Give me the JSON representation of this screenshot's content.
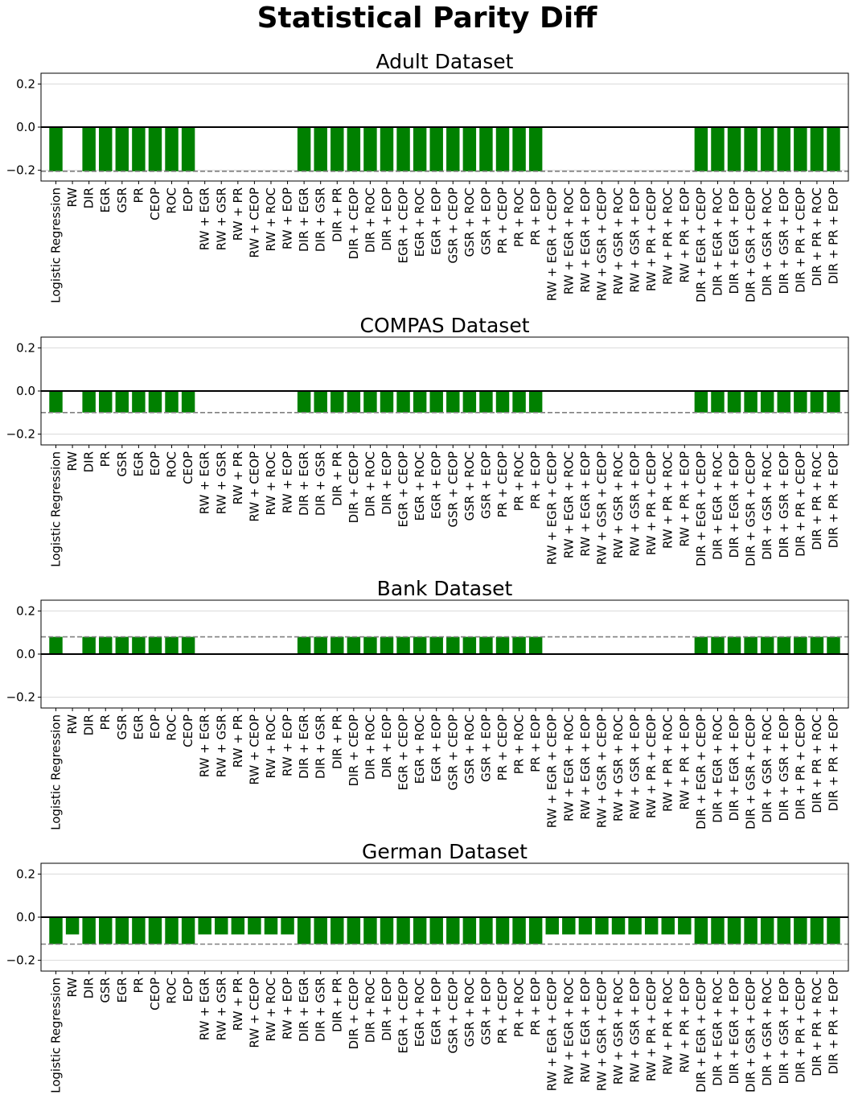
{
  "figure": {
    "title": "Statistical Parity Diff"
  },
  "colors": {
    "bar": "#008000",
    "zero_line": "#000000",
    "ref_line": "#808080",
    "grid": "#d9d9d9"
  },
  "chart_data": [
    {
      "type": "bar",
      "title": "Adult Dataset",
      "ylim": [
        -0.25,
        0.25
      ],
      "yticks": [
        -0.2,
        0.0,
        0.2
      ],
      "ytick_labels": [
        "−0.2",
        "0.0",
        "0.2"
      ],
      "grid": "horizontal",
      "reference_line": -0.205,
      "categories": [
        "Logistic Regression",
        "RW",
        "DIR",
        "EGR",
        "GSR",
        "PR",
        "CEOP",
        "ROC",
        "EOP",
        "RW + EGR",
        "RW + GSR",
        "RW + PR",
        "RW + CEOP",
        "RW + ROC",
        "RW + EOP",
        "DIR + EGR",
        "DIR + GSR",
        "DIR + PR",
        "DIR + CEOP",
        "DIR + ROC",
        "DIR + EOP",
        "EGR + CEOP",
        "EGR + ROC",
        "EGR + EOP",
        "GSR + CEOP",
        "GSR + ROC",
        "GSR + EOP",
        "PR + CEOP",
        "PR + ROC",
        "PR + EOP",
        "RW + EGR + CEOP",
        "RW + EGR + ROC",
        "RW + EGR + EOP",
        "RW + GSR + CEOP",
        "RW + GSR + ROC",
        "RW + GSR + EOP",
        "RW + PR + CEOP",
        "RW + PR + ROC",
        "RW + PR + EOP",
        "DIR + EGR + CEOP",
        "DIR + EGR + ROC",
        "DIR + EGR + EOP",
        "DIR + GSR + CEOP",
        "DIR + GSR + ROC",
        "DIR + GSR + EOP",
        "DIR + PR + CEOP",
        "DIR + PR + ROC",
        "DIR + PR + EOP"
      ],
      "values": [
        -0.205,
        0,
        -0.205,
        -0.205,
        -0.205,
        -0.205,
        -0.205,
        -0.205,
        -0.205,
        0,
        0,
        0,
        0,
        0,
        0,
        -0.205,
        -0.205,
        -0.205,
        -0.205,
        -0.205,
        -0.205,
        -0.205,
        -0.205,
        -0.205,
        -0.205,
        -0.205,
        -0.205,
        -0.205,
        -0.205,
        -0.205,
        0,
        0,
        0,
        0,
        0,
        0,
        0,
        0,
        0,
        -0.205,
        -0.205,
        -0.205,
        -0.205,
        -0.205,
        -0.205,
        -0.205,
        -0.205,
        -0.205
      ]
    },
    {
      "type": "bar",
      "title": "COMPAS Dataset",
      "ylim": [
        -0.25,
        0.25
      ],
      "yticks": [
        -0.2,
        0.0,
        0.2
      ],
      "ytick_labels": [
        "−0.2",
        "0.0",
        "0.2"
      ],
      "grid": "horizontal",
      "reference_line": -0.1,
      "categories": [
        "Logistic Regression",
        "RW",
        "DIR",
        "PR",
        "GSR",
        "EGR",
        "EOP",
        "ROC",
        "CEOP",
        "RW + EGR",
        "RW + GSR",
        "RW + PR",
        "RW + CEOP",
        "RW + ROC",
        "RW + EOP",
        "DIR + EGR",
        "DIR + GSR",
        "DIR + PR",
        "DIR + CEOP",
        "DIR + ROC",
        "DIR + EOP",
        "EGR + CEOP",
        "EGR + ROC",
        "EGR + EOP",
        "GSR + CEOP",
        "GSR + ROC",
        "GSR + EOP",
        "PR + CEOP",
        "PR + ROC",
        "PR + EOP",
        "RW + EGR + CEOP",
        "RW + EGR + ROC",
        "RW + EGR + EOP",
        "RW + GSR + CEOP",
        "RW + GSR + ROC",
        "RW + GSR + EOP",
        "RW + PR + CEOP",
        "RW + PR + ROC",
        "RW + PR + EOP",
        "DIR + EGR + CEOP",
        "DIR + EGR + ROC",
        "DIR + EGR + EOP",
        "DIR + GSR + CEOP",
        "DIR + GSR + ROC",
        "DIR + GSR + EOP",
        "DIR + PR + CEOP",
        "DIR + PR + ROC",
        "DIR + PR + EOP"
      ],
      "values": [
        -0.1,
        0,
        -0.1,
        -0.1,
        -0.1,
        -0.1,
        -0.1,
        -0.1,
        -0.1,
        0,
        0,
        0,
        0,
        0,
        0,
        -0.1,
        -0.1,
        -0.1,
        -0.1,
        -0.1,
        -0.1,
        -0.1,
        -0.1,
        -0.1,
        -0.1,
        -0.1,
        -0.1,
        -0.1,
        -0.1,
        -0.1,
        0,
        0,
        0,
        0,
        0,
        0,
        0,
        0,
        0,
        -0.1,
        -0.1,
        -0.1,
        -0.1,
        -0.1,
        -0.1,
        -0.1,
        -0.1,
        -0.1
      ]
    },
    {
      "type": "bar",
      "title": "Bank Dataset",
      "ylim": [
        -0.25,
        0.25
      ],
      "yticks": [
        -0.2,
        0.0,
        0.2
      ],
      "ytick_labels": [
        "−0.2",
        "0.0",
        "0.2"
      ],
      "grid": "horizontal",
      "reference_line": 0.08,
      "categories": [
        "Logistic Regression",
        "RW",
        "DIR",
        "PR",
        "GSR",
        "EGR",
        "EOP",
        "ROC",
        "CEOP",
        "RW + EGR",
        "RW + GSR",
        "RW + PR",
        "RW + CEOP",
        "RW + ROC",
        "RW + EOP",
        "DIR + EGR",
        "DIR + GSR",
        "DIR + PR",
        "DIR + CEOP",
        "DIR + ROC",
        "DIR + EOP",
        "EGR + CEOP",
        "EGR + ROC",
        "EGR + EOP",
        "GSR + CEOP",
        "GSR + ROC",
        "GSR + EOP",
        "PR + CEOP",
        "PR + ROC",
        "PR + EOP",
        "RW + EGR + CEOP",
        "RW + EGR + ROC",
        "RW + EGR + EOP",
        "RW + GSR + CEOP",
        "RW + GSR + ROC",
        "RW + GSR + EOP",
        "RW + PR + CEOP",
        "RW + PR + ROC",
        "RW + PR + EOP",
        "DIR + EGR + CEOP",
        "DIR + EGR + ROC",
        "DIR + EGR + EOP",
        "DIR + GSR + CEOP",
        "DIR + GSR + ROC",
        "DIR + GSR + EOP",
        "DIR + PR + CEOP",
        "DIR + PR + ROC",
        "DIR + PR + EOP"
      ],
      "values": [
        0.08,
        0,
        0.08,
        0.08,
        0.08,
        0.08,
        0.08,
        0.08,
        0.08,
        0,
        0,
        0,
        0,
        0,
        0,
        0.08,
        0.08,
        0.08,
        0.08,
        0.08,
        0.08,
        0.08,
        0.08,
        0.08,
        0.08,
        0.08,
        0.08,
        0.08,
        0.08,
        0.08,
        0,
        0,
        0,
        0,
        0,
        0,
        0,
        0,
        0,
        0.08,
        0.08,
        0.08,
        0.08,
        0.08,
        0.08,
        0.08,
        0.08,
        0.08
      ]
    },
    {
      "type": "bar",
      "title": "German Dataset",
      "ylim": [
        -0.25,
        0.25
      ],
      "yticks": [
        -0.2,
        0.0,
        0.2
      ],
      "ytick_labels": [
        "−0.2",
        "0.0",
        "0.2"
      ],
      "grid": "horizontal",
      "reference_line": -0.125,
      "categories": [
        "Logistic Regression",
        "RW",
        "DIR",
        "GSR",
        "EGR",
        "PR",
        "CEOP",
        "ROC",
        "EOP",
        "RW + EGR",
        "RW + GSR",
        "RW + PR",
        "RW + CEOP",
        "RW + ROC",
        "RW + EOP",
        "DIR + EGR",
        "DIR + GSR",
        "DIR + PR",
        "DIR + CEOP",
        "DIR + ROC",
        "DIR + EOP",
        "EGR + CEOP",
        "EGR + ROC",
        "EGR + EOP",
        "GSR + CEOP",
        "GSR + ROC",
        "GSR + EOP",
        "PR + CEOP",
        "PR + ROC",
        "PR + EOP",
        "RW + EGR + CEOP",
        "RW + EGR + ROC",
        "RW + EGR + EOP",
        "RW + GSR + CEOP",
        "RW + GSR + ROC",
        "RW + GSR + EOP",
        "RW + PR + CEOP",
        "RW + PR + ROC",
        "RW + PR + EOP",
        "DIR + EGR + CEOP",
        "DIR + EGR + ROC",
        "DIR + EGR + EOP",
        "DIR + GSR + CEOP",
        "DIR + GSR + ROC",
        "DIR + GSR + EOP",
        "DIR + PR + CEOP",
        "DIR + PR + ROC",
        "DIR + PR + EOP"
      ],
      "values": [
        -0.125,
        -0.08,
        -0.125,
        -0.125,
        -0.125,
        -0.125,
        -0.125,
        -0.125,
        -0.125,
        -0.08,
        -0.08,
        -0.08,
        -0.08,
        -0.08,
        -0.08,
        -0.125,
        -0.125,
        -0.125,
        -0.125,
        -0.125,
        -0.125,
        -0.125,
        -0.125,
        -0.125,
        -0.125,
        -0.125,
        -0.125,
        -0.125,
        -0.125,
        -0.125,
        -0.08,
        -0.08,
        -0.08,
        -0.08,
        -0.08,
        -0.08,
        -0.08,
        -0.08,
        -0.08,
        -0.125,
        -0.125,
        -0.125,
        -0.125,
        -0.125,
        -0.125,
        -0.125,
        -0.125,
        -0.125
      ]
    }
  ]
}
